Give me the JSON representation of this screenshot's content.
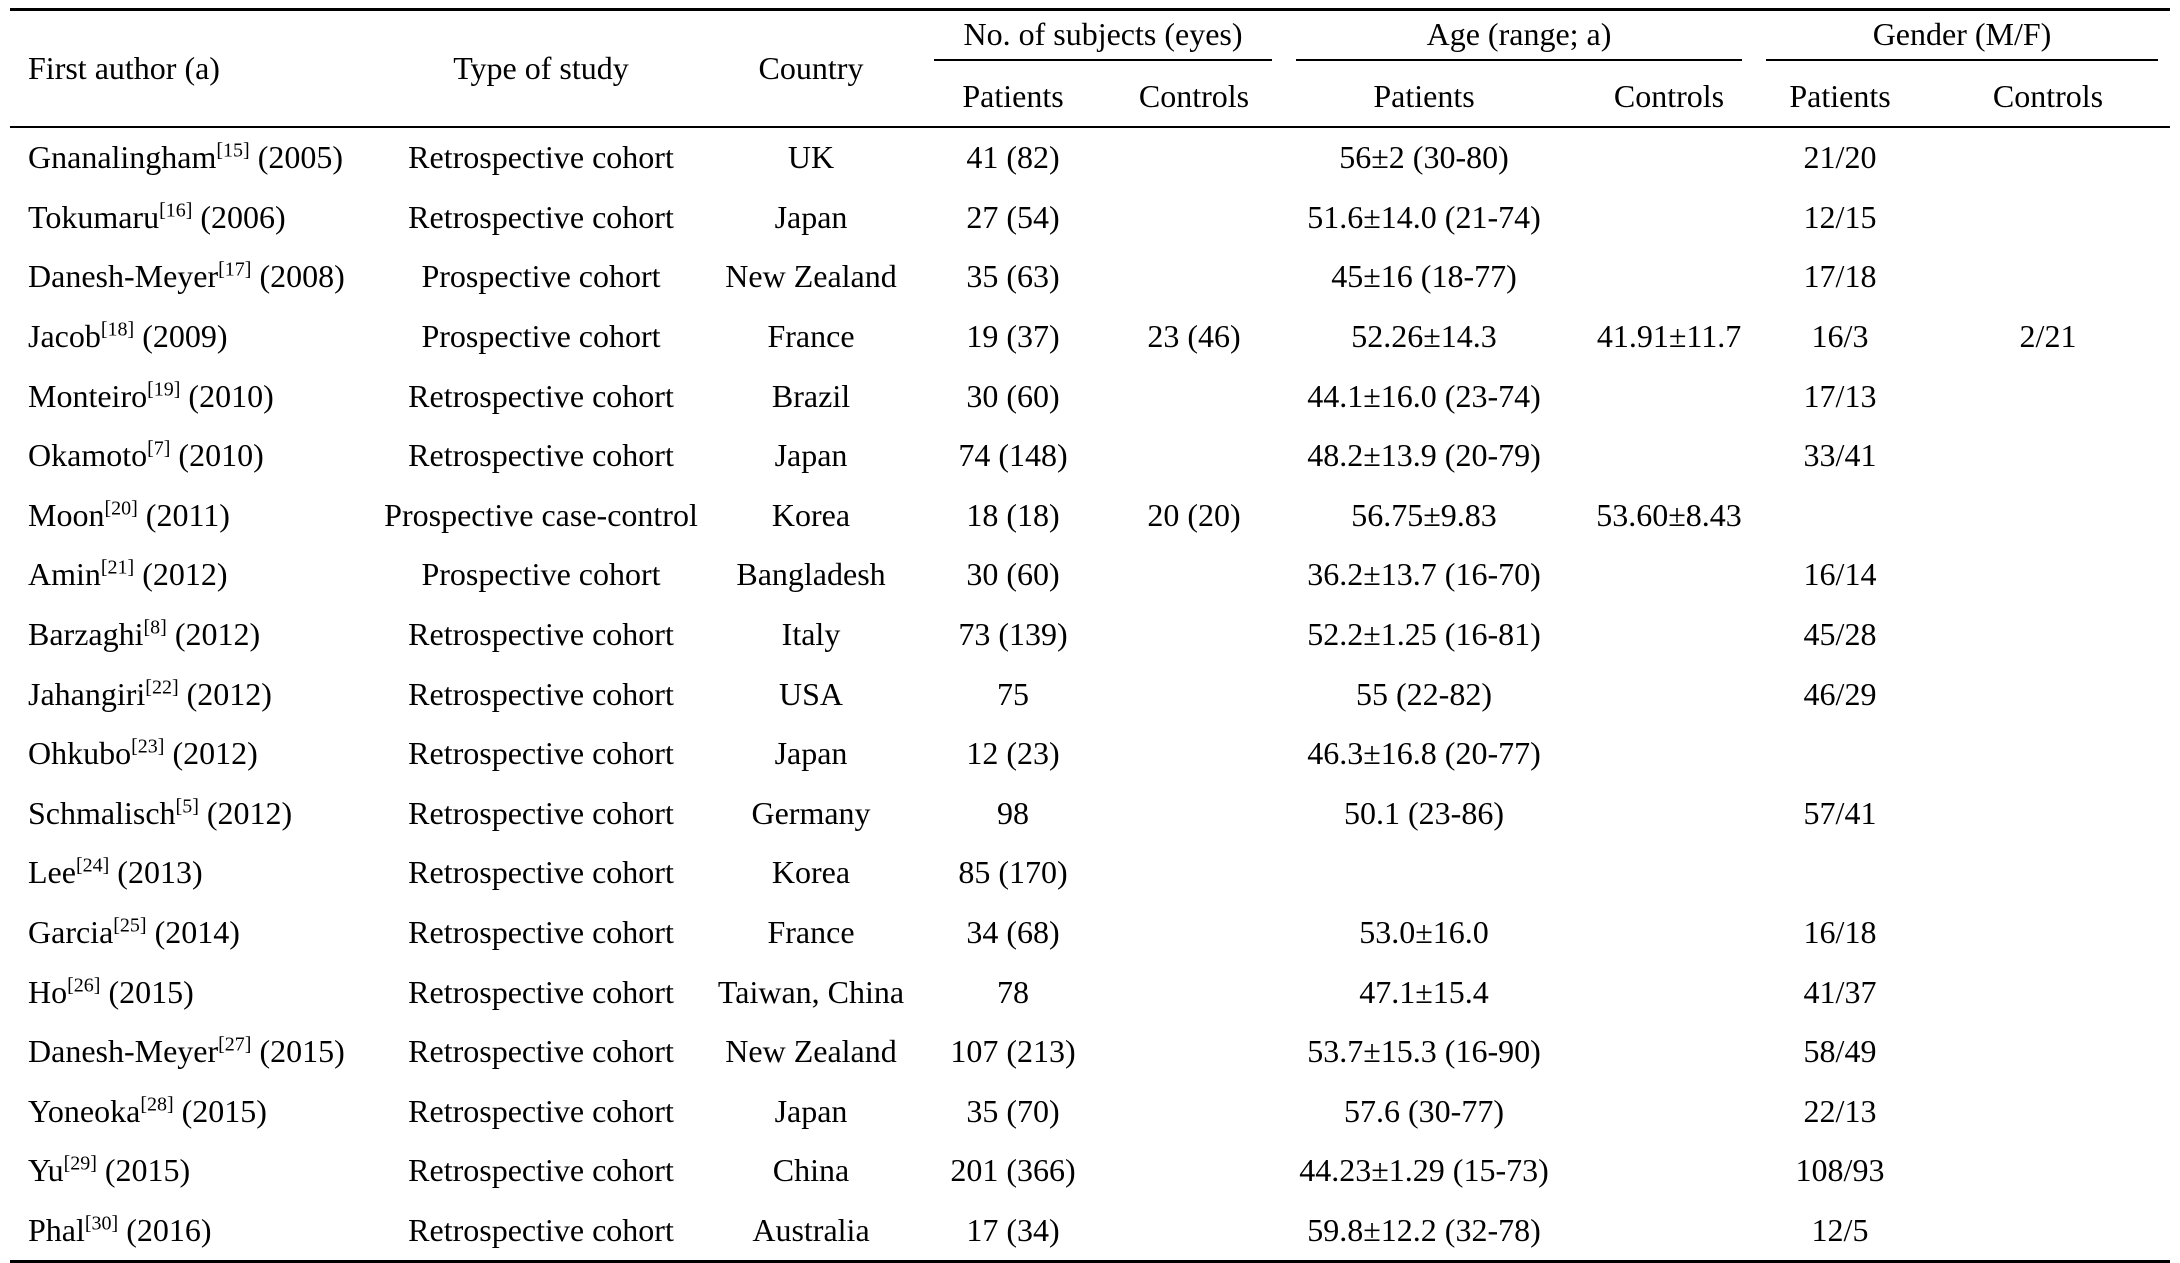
{
  "headers": {
    "first_author": "First author (a)",
    "type_of_study": "Type of study",
    "country": "Country",
    "subjects_group": "No. of subjects (eyes)",
    "age_group": "Age (range; a)",
    "gender_group": "Gender (M/F)",
    "patients": "Patients",
    "controls": "Controls"
  },
  "rows": [
    {
      "author": "Gnanalingham",
      "ref": "[15]",
      "year": " (2005)",
      "type": "Retrospective cohort",
      "country": "UK",
      "subjects_patients": "41 (82)",
      "subjects_controls": "",
      "age_patients": "56±2 (30-80)",
      "age_controls": "",
      "gender_patients": "21/20",
      "gender_controls": ""
    },
    {
      "author": "Tokumaru",
      "ref": "[16]",
      "year": " (2006)",
      "type": "Retrospective cohort",
      "country": "Japan",
      "subjects_patients": "27 (54)",
      "subjects_controls": "",
      "age_patients": "51.6±14.0 (21-74)",
      "age_controls": "",
      "gender_patients": "12/15",
      "gender_controls": ""
    },
    {
      "author": "Danesh-Meyer",
      "ref": "[17]",
      "year": " (2008)",
      "type": "Prospective cohort",
      "country": "New Zealand",
      "subjects_patients": "35 (63)",
      "subjects_controls": "",
      "age_patients": "45±16 (18-77)",
      "age_controls": "",
      "gender_patients": "17/18",
      "gender_controls": ""
    },
    {
      "author": "Jacob",
      "ref": "[18]",
      "year": " (2009)",
      "type": "Prospective cohort",
      "country": "France",
      "subjects_patients": "19 (37)",
      "subjects_controls": "23 (46)",
      "age_patients": "52.26±14.3",
      "age_controls": "41.91±11.7",
      "gender_patients": "16/3",
      "gender_controls": "2/21"
    },
    {
      "author": "Monteiro",
      "ref": "[19]",
      "year": " (2010)",
      "type": "Retrospective cohort",
      "country": "Brazil",
      "subjects_patients": "30 (60)",
      "subjects_controls": "",
      "age_patients": "44.1±16.0 (23-74)",
      "age_controls": "",
      "gender_patients": "17/13",
      "gender_controls": ""
    },
    {
      "author": "Okamoto",
      "ref": "[7]",
      "year": " (2010)",
      "type": "Retrospective cohort",
      "country": "Japan",
      "subjects_patients": "74 (148)",
      "subjects_controls": "",
      "age_patients": "48.2±13.9 (20-79)",
      "age_controls": "",
      "gender_patients": "33/41",
      "gender_controls": ""
    },
    {
      "author": "Moon",
      "ref": "[20]",
      "year": " (2011)",
      "type": "Prospective case-control",
      "country": "Korea",
      "subjects_patients": "18 (18)",
      "subjects_controls": "20 (20)",
      "age_patients": "56.75±9.83",
      "age_controls": "53.60±8.43",
      "gender_patients": "",
      "gender_controls": ""
    },
    {
      "author": "Amin",
      "ref": "[21]",
      "year": " (2012)",
      "type": "Prospective cohort",
      "country": "Bangladesh",
      "subjects_patients": "30 (60)",
      "subjects_controls": "",
      "age_patients": "36.2±13.7 (16-70)",
      "age_controls": "",
      "gender_patients": "16/14",
      "gender_controls": ""
    },
    {
      "author": "Barzaghi",
      "ref": "[8]",
      "year": " (2012)",
      "type": "Retrospective cohort",
      "country": "Italy",
      "subjects_patients": "73 (139)",
      "subjects_controls": "",
      "age_patients": "52.2±1.25 (16-81)",
      "age_controls": "",
      "gender_patients": "45/28",
      "gender_controls": ""
    },
    {
      "author": "Jahangiri",
      "ref": "[22]",
      "year": " (2012)",
      "type": "Retrospective cohort",
      "country": "USA",
      "subjects_patients": "75",
      "subjects_controls": "",
      "age_patients": "55 (22-82)",
      "age_controls": "",
      "gender_patients": "46/29",
      "gender_controls": ""
    },
    {
      "author": "Ohkubo",
      "ref": "[23]",
      "year": " (2012)",
      "type": "Retrospective cohort",
      "country": "Japan",
      "subjects_patients": "12 (23)",
      "subjects_controls": "",
      "age_patients": "46.3±16.8 (20-77)",
      "age_controls": "",
      "gender_patients": "",
      "gender_controls": ""
    },
    {
      "author": "Schmalisch",
      "ref": "[5]",
      "year": " (2012)",
      "type": "Retrospective cohort",
      "country": "Germany",
      "subjects_patients": "98",
      "subjects_controls": "",
      "age_patients": "50.1 (23-86)",
      "age_controls": "",
      "gender_patients": "57/41",
      "gender_controls": ""
    },
    {
      "author": "Lee",
      "ref": "[24]",
      "year": " (2013)",
      "type": "Retrospective cohort",
      "country": "Korea",
      "subjects_patients": "85 (170)",
      "subjects_controls": "",
      "age_patients": "",
      "age_controls": "",
      "gender_patients": "",
      "gender_controls": ""
    },
    {
      "author": "Garcia",
      "ref": "[25]",
      "year": " (2014)",
      "type": "Retrospective cohort",
      "country": "France",
      "subjects_patients": "34 (68)",
      "subjects_controls": "",
      "age_patients": "53.0±16.0",
      "age_controls": "",
      "gender_patients": "16/18",
      "gender_controls": ""
    },
    {
      "author": "Ho",
      "ref": "[26]",
      "year": " (2015)",
      "type": "Retrospective cohort",
      "country": "Taiwan, China",
      "subjects_patients": "78",
      "subjects_controls": "",
      "age_patients": "47.1±15.4",
      "age_controls": "",
      "gender_patients": "41/37",
      "gender_controls": ""
    },
    {
      "author": "Danesh-Meyer",
      "ref": "[27]",
      "year": " (2015)",
      "type": "Retrospective cohort",
      "country": "New Zealand",
      "subjects_patients": "107 (213)",
      "subjects_controls": "",
      "age_patients": "53.7±15.3 (16-90)",
      "age_controls": "",
      "gender_patients": "58/49",
      "gender_controls": ""
    },
    {
      "author": "Yoneoka",
      "ref": "[28]",
      "year": " (2015)",
      "type": "Retrospective cohort",
      "country": "Japan",
      "subjects_patients": "35 (70)",
      "subjects_controls": "",
      "age_patients": "57.6 (30-77)",
      "age_controls": "",
      "gender_patients": "22/13",
      "gender_controls": ""
    },
    {
      "author": "Yu",
      "ref": "[29]",
      "year": " (2015)",
      "type": "Retrospective cohort",
      "country": "China",
      "subjects_patients": "201 (366)",
      "subjects_controls": "",
      "age_patients": "44.23±1.29 (15-73)",
      "age_controls": "",
      "gender_patients": "108/93",
      "gender_controls": ""
    },
    {
      "author": "Phal",
      "ref": "[30]",
      "year": " (2016)",
      "type": "Retrospective cohort",
      "country": "Australia",
      "subjects_patients": "17 (34)",
      "subjects_controls": "",
      "age_patients": "59.8±12.2 (32-78)",
      "age_controls": "",
      "gender_patients": "12/5",
      "gender_controls": ""
    }
  ]
}
